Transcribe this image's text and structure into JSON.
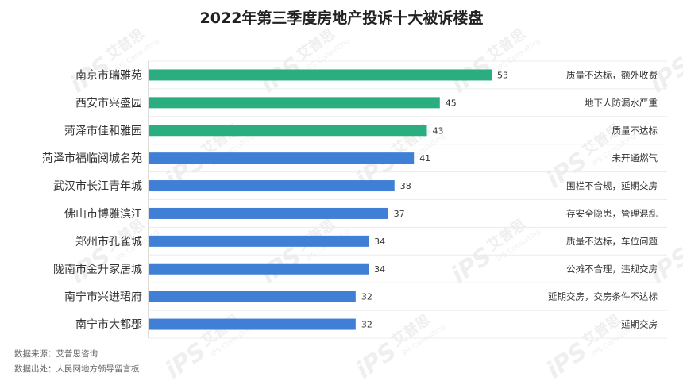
{
  "chart_data": {
    "type": "bar",
    "orientation": "horizontal",
    "title": "2022年第三季度房地产投诉十大被诉楼盘",
    "categories": [
      "南京市瑞雅苑",
      "西安市兴盛园",
      "菏泽市佳和雅园",
      "菏泽市福临阅城名苑",
      "武汉市长江青年城",
      "佛山市博雅滨江",
      "郑州市孔雀城",
      "陇南市金升家居城",
      "南宁市兴进珺府",
      "南宁市大都郡"
    ],
    "values": [
      53,
      45,
      43,
      41,
      38,
      37,
      34,
      34,
      32,
      32
    ],
    "complaint_reasons": [
      "质量不达标，额外收费",
      "地下人防漏水严重",
      "质量不达标",
      "未开通燃气",
      "围栏不合规，延期交房",
      "存安全隐患，管理混乱",
      "质量不达标，车位问题",
      "公摊不合理，违规交房",
      "延期交房，交房条件不达标",
      "延期交房"
    ],
    "bar_colors": [
      "#2aae7f",
      "#2aae7f",
      "#2aae7f",
      "#3f7fd6",
      "#3f7fd6",
      "#3f7fd6",
      "#3f7fd6",
      "#3f7fd6",
      "#3f7fd6",
      "#3f7fd6"
    ],
    "xlim": [
      0,
      53
    ],
    "grid": false,
    "source_lines": [
      "数据来源：艾普思咨询",
      "数据出处：人民网地方领导留言板"
    ],
    "watermark_text": [
      "艾普思",
      "iPS Consulting"
    ]
  }
}
